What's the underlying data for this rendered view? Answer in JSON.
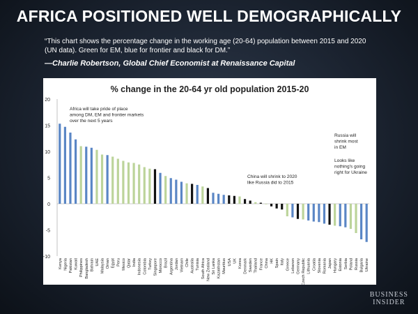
{
  "header": {
    "title": "AFRICA POSITIONED WELL DEMOGRAPHICALLY",
    "quote": "“This chart shows the percentage change in the working age (20-64) population between 2015 and 2020 (UN data). Green for EM, blue for frontier and black for DM.”",
    "attribution": "—Charlie Robertson, Global Chief Economist at Renaissance Capital"
  },
  "brand": {
    "line1": "BUSINESS",
    "line2": "INSIDER"
  },
  "colors": {
    "frontier": "#5a86c5",
    "em": "#bcd49a",
    "dm": "#111111"
  },
  "chart_data": {
    "type": "bar",
    "title": "% change in the 20-64 yr old population 2015-20",
    "xlabel": "",
    "ylabel": "",
    "ylim": [
      -10,
      20
    ],
    "yticks": [
      20,
      15,
      10,
      5,
      0,
      -5,
      -10
    ],
    "categories": [
      "Kenya",
      "Nigeria",
      "Pakistan",
      "Kuwait",
      "Philippines",
      "Bangladesh",
      "Bahrain",
      "UAE",
      "Malaysia",
      "Oman",
      "Egypt",
      "Peru",
      "Mexico",
      "Qatar",
      "India",
      "Indonesia",
      "Colombia",
      "Turkey",
      "Singapore",
      "Morocco",
      "Brazil",
      "Argentina",
      "Jordan",
      "Vietnam",
      "Chile",
      "Australia",
      "Tunisia",
      "South Africa",
      "New Zealand",
      "Sri Lanka",
      "Kazakhstan",
      "Mauritius",
      "USA",
      "UK",
      "Korea",
      "Denmark",
      "Sweden",
      "Thailand",
      "France",
      "China",
      "HK",
      "Spain",
      "Italy",
      "Greece",
      "Lebanon",
      "Germany",
      "Czech Republic",
      "Lithuania",
      "Croatia",
      "Slovenia",
      "Romania",
      "Japan",
      "Hungary",
      "Estonia",
      "Serbia",
      "Poland",
      "Russia",
      "Bulgaria",
      "Ukraine"
    ],
    "groups": [
      "frontier",
      "frontier",
      "frontier",
      "frontier",
      "em",
      "frontier",
      "frontier",
      "em",
      "em",
      "frontier",
      "em",
      "em",
      "em",
      "em",
      "em",
      "em",
      "em",
      "em",
      "dm",
      "frontier",
      "em",
      "frontier",
      "frontier",
      "frontier",
      "em",
      "dm",
      "frontier",
      "em",
      "dm",
      "frontier",
      "frontier",
      "frontier",
      "dm",
      "dm",
      "em",
      "dm",
      "dm",
      "em",
      "dm",
      "em",
      "dm",
      "dm",
      "dm",
      "em",
      "frontier",
      "dm",
      "em",
      "frontier",
      "frontier",
      "frontier",
      "frontier",
      "dm",
      "em",
      "frontier",
      "frontier",
      "em",
      "em",
      "frontier",
      "frontier"
    ],
    "values": [
      15.3,
      14.7,
      13.6,
      12.3,
      11.0,
      10.9,
      10.7,
      10.3,
      9.4,
      9.3,
      9.0,
      8.6,
      8.2,
      7.9,
      7.8,
      7.5,
      7.0,
      6.7,
      6.6,
      5.9,
      5.3,
      4.9,
      4.6,
      4.2,
      3.9,
      3.8,
      3.6,
      3.3,
      3.0,
      2.1,
      1.9,
      1.7,
      1.6,
      1.5,
      1.4,
      0.9,
      0.6,
      0.3,
      0.2,
      -0.1,
      -0.5,
      -0.9,
      -1.1,
      -2.4,
      -2.6,
      -2.9,
      -3.0,
      -3.2,
      -3.4,
      -3.5,
      -3.8,
      -4.0,
      -4.2,
      -4.3,
      -4.5,
      -4.8,
      -5.6,
      -6.8,
      -7.3
    ],
    "annotations": [
      {
        "text": [
          "Africa will take pride of place",
          "among DM, EM and frontier markets",
          "over the next 5 years"
        ],
        "anchor": "upper-left"
      },
      {
        "text": [
          "Russia will",
          "shrink most",
          "in EM"
        ],
        "anchor": "upper-right"
      },
      {
        "text": [
          "Looks like",
          "nothing's going",
          "right for Ukraine"
        ],
        "anchor": "right"
      },
      {
        "text": [
          "China will shrink to 2020",
          "like Russia did to 2015"
        ],
        "anchor": "center-right"
      }
    ]
  }
}
